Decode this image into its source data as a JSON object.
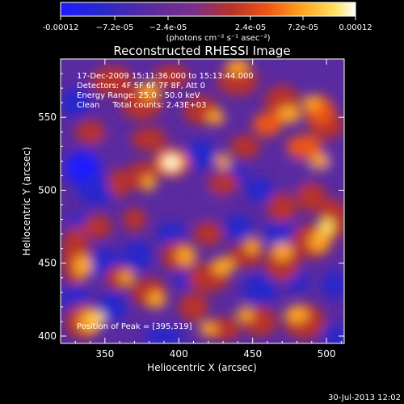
{
  "chart_data": {
    "type": "heatmap",
    "title": "Reconstructed RHESSI Image",
    "xlabel": "Heliocentric X (arcsec)",
    "ylabel": "Heliocentric Y (arcsec)",
    "xlim": [
      320,
      512
    ],
    "ylim": [
      395,
      590
    ],
    "x_ticks": [
      350,
      400,
      450,
      500
    ],
    "y_ticks": [
      400,
      450,
      500,
      550
    ],
    "colorbar": {
      "range": [
        -0.00012,
        0.00012
      ],
      "tick_labels": [
        "-0.00012",
        "−7.2e-05",
        "−2.4e-05",
        "2.4e-05",
        "7.2e-05",
        "0.00012"
      ],
      "units": "(photons cm⁻² s⁻¹ asec⁻²)",
      "colors": [
        "#1c1cff",
        "#2828cc",
        "#5a2aa0",
        "#7a2f8a",
        "#b8322a",
        "#ee5512",
        "#ffa520",
        "#ffe060",
        "#ffffff"
      ]
    },
    "annotations": [
      "17-Dec-2009 15:11:36.000 to 15:13:44.000",
      "Detectors: 4F 5F 6F 7F 8F, Att 0",
      "Energy Range: 25.0 - 50.0 keV",
      "Clean     Total counts: 2.43E+03",
      "Position of Peak = [395,519]"
    ],
    "peak": [
      395,
      519
    ],
    "footer": "30-Jul-2013 12:02"
  }
}
